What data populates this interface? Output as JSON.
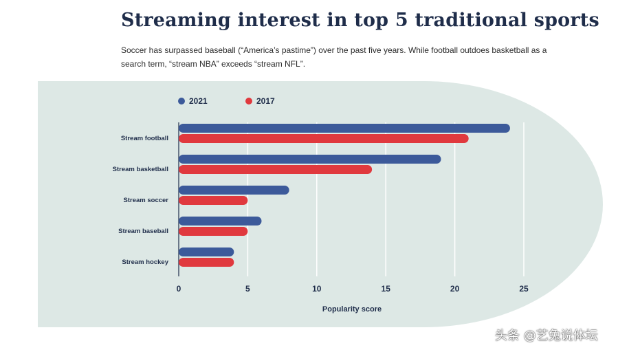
{
  "header": {
    "title": "Streaming interest in top 5 traditional sports",
    "subtitle": "Soccer has surpassed baseball (“America’s pastime”) over the past five years. While football outdoes basketball as a search term, “stream NBA” exceeds “stream NFL”."
  },
  "colors": {
    "series_2021": "#3c5a9a",
    "series_2017": "#e0393e",
    "panel": "#dde8e5"
  },
  "chart_data": {
    "type": "bar",
    "orientation": "horizontal",
    "categories": [
      "Stream football",
      "Stream basketball",
      "Stream soccer",
      "Stream baseball",
      "Stream hockey"
    ],
    "series": [
      {
        "name": "2021",
        "values": [
          24,
          19,
          8,
          6,
          4
        ]
      },
      {
        "name": "2017",
        "values": [
          21,
          14,
          5,
          5,
          4
        ]
      }
    ],
    "xlabel": "Popularity score",
    "xlim": [
      0,
      25
    ],
    "xticks": [
      0,
      5,
      10,
      15,
      20,
      25
    ],
    "legend": "top-left",
    "grid": true
  },
  "watermark": "头条 @艺兔说体坛"
}
